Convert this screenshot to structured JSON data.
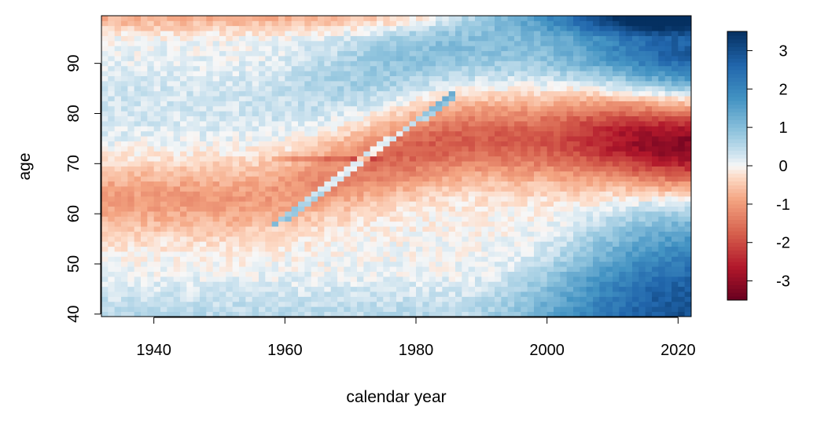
{
  "chart_data": {
    "type": "heatmap",
    "title": "",
    "xlabel": "calendar year",
    "ylabel": "age",
    "xlim": [
      1932,
      2022
    ],
    "ylim": [
      39.5,
      99.5
    ],
    "x_ticks": [
      1940,
      1960,
      1980,
      2000,
      2020
    ],
    "y_ticks": [
      40,
      50,
      60,
      70,
      80,
      90
    ],
    "colorbar": {
      "min": -3.5,
      "max": 3.5,
      "ticks": [
        -3,
        -2,
        -1,
        0,
        1,
        2,
        3
      ],
      "palette": "RdBu",
      "low_color": "#67001F",
      "mid_color": "#F7F7F7",
      "high_color": "#053061"
    },
    "description_of_pattern": [
      {
        "year": 1935,
        "age_low_band": 0.6,
        "age_60_70": -1.0,
        "age_80": 0.3,
        "age_95": -0.5
      },
      {
        "year": 1960,
        "age_low_band": 0.8,
        "age_60_70": -1.5,
        "age_80": 0.5,
        "age_95": 0.2
      },
      {
        "year": 1980,
        "age_low_band": 0.6,
        "age_70_80": -1.8,
        "age_90": 1.0,
        "age_95": 0.8
      },
      {
        "year": 2000,
        "age_low_band": 2.0,
        "age_75": -2.2,
        "age_90": 1.5,
        "age_95": 1.8
      },
      {
        "year": 2020,
        "age_low_band": 2.8,
        "age_72": -3.3,
        "age_90": 1.8,
        "age_95": 2.8
      }
    ]
  }
}
